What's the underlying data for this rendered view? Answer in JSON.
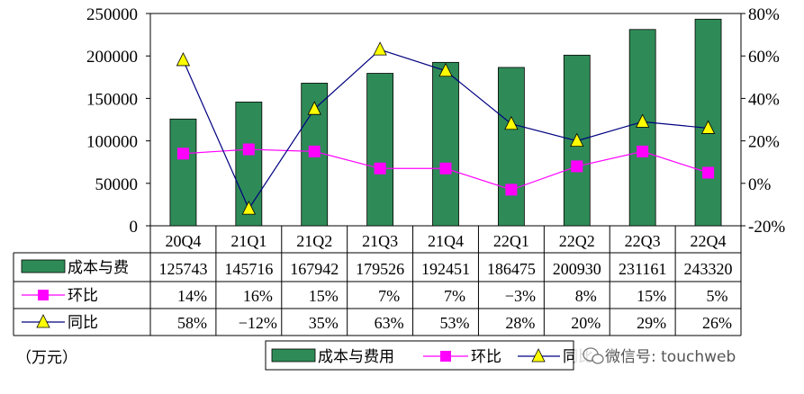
{
  "chart_data": {
    "type": "bar+line",
    "categories": [
      "20Q4",
      "21Q1",
      "21Q2",
      "21Q3",
      "21Q4",
      "22Q1",
      "22Q2",
      "22Q3",
      "22Q4"
    ],
    "series": [
      {
        "name": "成本与费",
        "legend_name": "成本与费用",
        "type": "bar",
        "axis": "left",
        "color": "#2e8b57",
        "values": [
          125743,
          145716,
          167942,
          179526,
          192451,
          186475,
          200930,
          231161,
          243320
        ]
      },
      {
        "name": "环比",
        "type": "line",
        "axis": "right",
        "color": "#ff00ff",
        "marker": "square",
        "values": [
          14,
          16,
          15,
          7,
          7,
          -3,
          8,
          15,
          5
        ],
        "labels": [
          "14%",
          "16%",
          "15%",
          "7%",
          "7%",
          "−3%",
          "8%",
          "15%",
          "5%"
        ]
      },
      {
        "name": "同比",
        "type": "line",
        "axis": "right",
        "color": "#000080",
        "marker": "triangle",
        "marker_color": "#ffff00",
        "values": [
          58,
          -12,
          35,
          63,
          53,
          28,
          20,
          29,
          26
        ],
        "labels": [
          "58%",
          "−12%",
          "35%",
          "63%",
          "53%",
          "28%",
          "20%",
          "29%",
          "26%"
        ]
      }
    ],
    "y_left": {
      "min": 0,
      "max": 250000,
      "ticks": [
        "0",
        "50000",
        "100000",
        "150000",
        "200000",
        "250000"
      ]
    },
    "y_right": {
      "min": -20,
      "max": 80,
      "ticks": [
        "-20%",
        "0%",
        "20%",
        "40%",
        "60%",
        "80%"
      ]
    },
    "unit_label": "（万元）",
    "legend_position": "bottom",
    "grid": false
  },
  "watermark": "微信号: touchweb"
}
